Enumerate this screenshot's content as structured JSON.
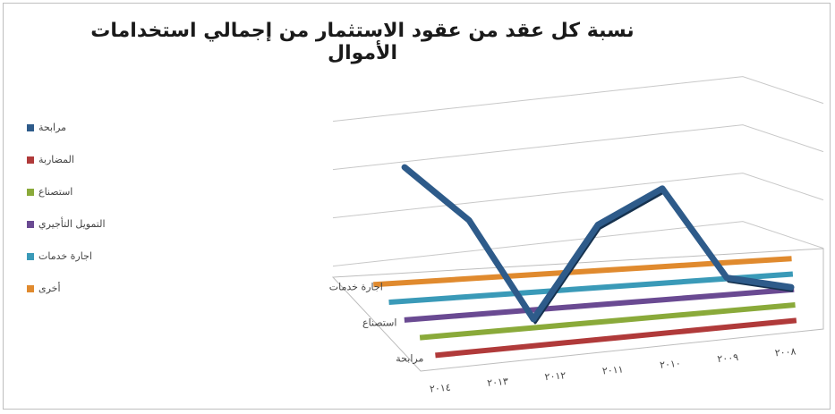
{
  "chart_data": {
    "type": "line",
    "style": "3d",
    "title": "نسبة كل عقد من عقود الاستثمار من إجمالي استخدامات الأموال",
    "x": [
      "٢٠١٤",
      "٢٠١٣",
      "٢٠١٢",
      "٢٠١١",
      "٢٠١٠",
      "٢٠٠٩",
      "٢٠٠٨"
    ],
    "depth_tick_labels": [
      "مرابحة",
      "استصناع",
      "اجارة خدمات"
    ],
    "series": [
      {
        "name": "مرابحة",
        "color": "#2e5b8a",
        "values": [
          0.62,
          0.38,
          -0.05,
          0.32,
          0.45,
          0.06,
          0.0
        ]
      },
      {
        "name": "المضاربة",
        "color": "#b03a3a",
        "values": [
          0,
          0,
          0,
          0,
          0,
          0,
          0
        ]
      },
      {
        "name": "استصناع",
        "color": "#8aaa3a",
        "values": [
          0,
          0,
          0,
          0,
          0,
          0,
          0
        ]
      },
      {
        "name": "التمويل التأجيري",
        "color": "#6a4a92",
        "values": [
          0,
          0,
          0,
          0,
          0,
          0,
          0
        ]
      },
      {
        "name": "اجارة خدمات",
        "color": "#3a9ab8",
        "values": [
          0,
          0,
          0,
          0,
          0,
          0,
          0
        ]
      },
      {
        "name": "أخرى",
        "color": "#e08a2e",
        "values": [
          0,
          0,
          0,
          0,
          0,
          0,
          0
        ]
      }
    ],
    "grid": true,
    "legend_position": "left"
  }
}
